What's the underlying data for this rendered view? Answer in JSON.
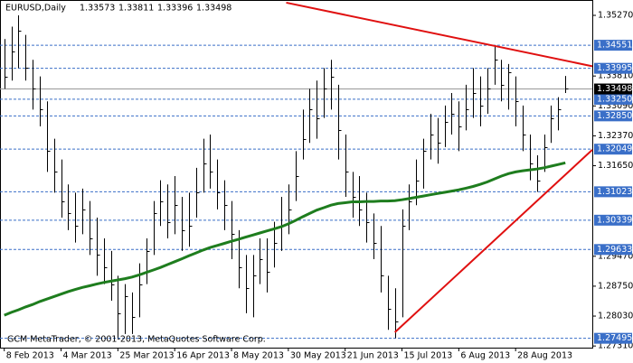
{
  "chart_data": {
    "type": "ohlc",
    "title": "EURUSD,Daily",
    "ohlc": [
      1.33573,
      1.33811,
      1.33396,
      1.33498
    ],
    "footer": "GCM MetaTrader, © 2001-2013, MetaQuotes Software Corp.",
    "color": "#000000",
    "xlim": [
      -0.6,
      82.8
    ],
    "ylim": [
      1.2727,
      1.3564
    ],
    "xticks": [
      {
        "value": 0,
        "label": "8 Feb 2013"
      },
      {
        "value": 8,
        "label": "4 Mar 2013"
      },
      {
        "value": 16,
        "label": "25 Mar 2013"
      },
      {
        "value": 24,
        "label": "16 Apr 2013"
      },
      {
        "value": 32,
        "label": "8 May 2013"
      },
      {
        "value": 40,
        "label": "30 May 2013"
      },
      {
        "value": 48,
        "label": "21 Jun 2013"
      },
      {
        "value": 56,
        "label": "15 Jul 2013"
      },
      {
        "value": 64,
        "label": "6 Aug 2013"
      },
      {
        "value": 72,
        "label": "28 Aug 2013"
      }
    ],
    "yticks": [
      {
        "value": 1.3527,
        "label": "1.35270"
      },
      {
        "value": 1.3381,
        "label": "1.33810"
      },
      {
        "value": 1.3309,
        "label": "1.33090"
      },
      {
        "value": 1.3237,
        "label": "1.32370"
      },
      {
        "value": 1.3165,
        "label": "1.31650"
      },
      {
        "value": 1.2947,
        "label": "1.29470"
      },
      {
        "value": 1.2875,
        "label": "1.28750"
      },
      {
        "value": 1.2803,
        "label": "1.28030"
      },
      {
        "value": 1.2731,
        "label": "1.27310"
      }
    ],
    "levels": [
      1.34551,
      1.33995,
      {
        "value": 1.3325,
        "label": "1.33250"
      },
      {
        "value": 1.3285,
        "label": "1.32850"
      },
      1.32049,
      1.31023,
      1.30339,
      1.29633,
      1.27495
    ],
    "level_color": "#3a6fc8",
    "last_price": 1.33498,
    "bars": [
      {
        "high": 1.347,
        "low": 1.335,
        "close": 1.338
      },
      {
        "high": 1.35,
        "low": 1.337,
        "close": 1.344
      },
      {
        "high": 1.3527,
        "low": 1.34,
        "close": 1.349
      },
      {
        "high": 1.348,
        "low": 1.337,
        "close": 1.34
      },
      {
        "high": 1.342,
        "low": 1.33,
        "close": 1.335
      },
      {
        "high": 1.338,
        "low": 1.326,
        "close": 1.33
      },
      {
        "high": 1.332,
        "low": 1.315,
        "close": 1.32
      },
      {
        "high": 1.323,
        "low": 1.31,
        "close": 1.315
      },
      {
        "high": 1.318,
        "low": 1.304,
        "close": 1.308
      },
      {
        "high": 1.312,
        "low": 1.301,
        "close": 1.305
      },
      {
        "high": 1.31,
        "low": 1.298,
        "close": 1.302
      },
      {
        "high": 1.311,
        "low": 1.3,
        "close": 1.306
      },
      {
        "high": 1.308,
        "low": 1.295,
        "close": 1.299
      },
      {
        "high": 1.304,
        "low": 1.29,
        "close": 1.295
      },
      {
        "high": 1.299,
        "low": 1.288,
        "close": 1.292
      },
      {
        "high": 1.296,
        "low": 1.284,
        "close": 1.288
      },
      {
        "high": 1.29,
        "low": 1.275,
        "close": 1.281
      },
      {
        "high": 1.288,
        "low": 1.276,
        "close": 1.285
      },
      {
        "high": 1.286,
        "low": 1.276,
        "close": 1.28
      },
      {
        "high": 1.293,
        "low": 1.28,
        "close": 1.288
      },
      {
        "high": 1.299,
        "low": 1.288,
        "close": 1.296
      },
      {
        "high": 1.308,
        "low": 1.295,
        "close": 1.305
      },
      {
        "high": 1.313,
        "low": 1.302,
        "close": 1.308
      },
      {
        "high": 1.312,
        "low": 1.299,
        "close": 1.303
      },
      {
        "high": 1.314,
        "low": 1.3,
        "close": 1.307
      },
      {
        "high": 1.309,
        "low": 1.296,
        "close": 1.301
      },
      {
        "high": 1.31,
        "low": 1.297,
        "close": 1.302
      },
      {
        "high": 1.316,
        "low": 1.304,
        "close": 1.31
      },
      {
        "high": 1.323,
        "low": 1.31,
        "close": 1.317
      },
      {
        "high": 1.324,
        "low": 1.311,
        "close": 1.315
      },
      {
        "high": 1.318,
        "low": 1.306,
        "close": 1.31
      },
      {
        "high": 1.313,
        "low": 1.301,
        "close": 1.307
      },
      {
        "high": 1.308,
        "low": 1.294,
        "close": 1.3
      },
      {
        "high": 1.301,
        "low": 1.287,
        "close": 1.292
      },
      {
        "high": 1.295,
        "low": 1.281,
        "close": 1.287
      },
      {
        "high": 1.295,
        "low": 1.28,
        "close": 1.29
      },
      {
        "high": 1.299,
        "low": 1.288,
        "close": 1.294
      },
      {
        "high": 1.299,
        "low": 1.286,
        "close": 1.291
      },
      {
        "high": 1.303,
        "low": 1.292,
        "close": 1.298
      },
      {
        "high": 1.309,
        "low": 1.296,
        "close": 1.302
      },
      {
        "high": 1.312,
        "low": 1.3,
        "close": 1.306
      },
      {
        "high": 1.32,
        "low": 1.308,
        "close": 1.314
      },
      {
        "high": 1.33,
        "low": 1.318,
        "close": 1.323
      },
      {
        "high": 1.335,
        "low": 1.322,
        "close": 1.33
      },
      {
        "high": 1.337,
        "low": 1.323,
        "close": 1.328
      },
      {
        "high": 1.34,
        "low": 1.328,
        "close": 1.335
      },
      {
        "high": 1.342,
        "low": 1.33,
        "close": 1.338
      },
      {
        "high": 1.336,
        "low": 1.318,
        "close": 1.325
      },
      {
        "high": 1.324,
        "low": 1.309,
        "close": 1.315
      },
      {
        "high": 1.315,
        "low": 1.304,
        "close": 1.309
      },
      {
        "high": 1.314,
        "low": 1.302,
        "close": 1.306
      },
      {
        "high": 1.31,
        "low": 1.298,
        "close": 1.303
      },
      {
        "high": 1.305,
        "low": 1.294,
        "close": 1.298
      },
      {
        "high": 1.302,
        "low": 1.286,
        "close": 1.29
      },
      {
        "high": 1.29,
        "low": 1.277,
        "close": 1.282
      },
      {
        "high": 1.287,
        "low": 1.275,
        "close": 1.279
      },
      {
        "high": 1.306,
        "low": 1.28,
        "close": 1.302
      },
      {
        "high": 1.312,
        "low": 1.301,
        "close": 1.308
      },
      {
        "high": 1.318,
        "low": 1.307,
        "close": 1.313
      },
      {
        "high": 1.323,
        "low": 1.311,
        "close": 1.32
      },
      {
        "high": 1.329,
        "low": 1.318,
        "close": 1.324
      },
      {
        "high": 1.328,
        "low": 1.317,
        "close": 1.322
      },
      {
        "high": 1.331,
        "low": 1.321,
        "close": 1.327
      },
      {
        "high": 1.334,
        "low": 1.324,
        "close": 1.329
      },
      {
        "high": 1.332,
        "low": 1.32,
        "close": 1.326
      },
      {
        "high": 1.336,
        "low": 1.325,
        "close": 1.33
      },
      {
        "high": 1.34,
        "low": 1.328,
        "close": 1.334
      },
      {
        "high": 1.338,
        "low": 1.326,
        "close": 1.331
      },
      {
        "high": 1.34,
        "low": 1.329,
        "close": 1.335
      },
      {
        "high": 1.3455,
        "low": 1.336,
        "close": 1.342
      },
      {
        "high": 1.342,
        "low": 1.332,
        "close": 1.336
      },
      {
        "high": 1.341,
        "low": 1.33,
        "close": 1.339
      },
      {
        "high": 1.338,
        "low": 1.326,
        "close": 1.332
      },
      {
        "high": 1.331,
        "low": 1.32,
        "close": 1.324
      },
      {
        "high": 1.324,
        "low": 1.313,
        "close": 1.317
      },
      {
        "high": 1.319,
        "low": 1.3102,
        "close": 1.313
      },
      {
        "high": 1.324,
        "low": 1.315,
        "close": 1.321
      },
      {
        "high": 1.331,
        "low": 1.322,
        "close": 1.328
      },
      {
        "high": 1.333,
        "low": 1.325,
        "close": 1.33
      },
      {
        "high": 1.3381,
        "low": 1.334,
        "close": 1.335
      }
    ],
    "moving_average": {
      "color": "#1e7d1e",
      "values": [
        1.2805,
        1.2812,
        1.2818,
        1.2825,
        1.2831,
        1.2838,
        1.2844,
        1.285,
        1.2856,
        1.2862,
        1.2867,
        1.2872,
        1.2876,
        1.288,
        1.2884,
        1.2887,
        1.289,
        1.2893,
        1.2897,
        1.2902,
        1.2908,
        1.2914,
        1.292,
        1.2927,
        1.2934,
        1.2941,
        1.2948,
        1.2955,
        1.2962,
        1.2968,
        1.2973,
        1.2978,
        1.2983,
        1.2988,
        1.2993,
        1.2998,
        1.3003,
        1.3008,
        1.3013,
        1.3018,
        1.3025,
        1.3033,
        1.3042,
        1.305,
        1.3058,
        1.3064,
        1.307,
        1.3074,
        1.3076,
        1.3078,
        1.3078,
        1.3079,
        1.3079,
        1.308,
        1.308,
        1.3081,
        1.3083,
        1.3086,
        1.3089,
        1.3092,
        1.3095,
        1.3098,
        1.3101,
        1.3104,
        1.3107,
        1.3111,
        1.3115,
        1.312,
        1.3126,
        1.3133,
        1.314,
        1.3146,
        1.315,
        1.3153,
        1.3155,
        1.3157,
        1.316,
        1.3164,
        1.3168,
        1.3172
      ]
    },
    "trendlines": [
      {
        "color": "#e01010",
        "x": [
          39.7,
          82.8
        ],
        "y": [
          1.35576,
          1.34045
        ]
      },
      {
        "color": "#e01010",
        "x": [
          55,
          82.8
        ],
        "y": [
          1.27639,
          1.32034
        ]
      }
    ]
  }
}
